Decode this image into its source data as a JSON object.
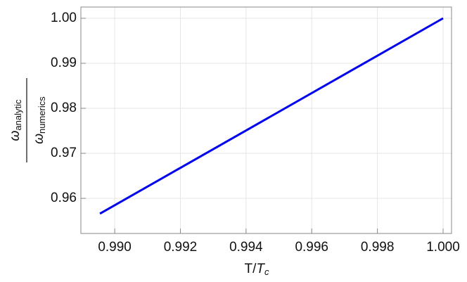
{
  "chart_data": {
    "type": "line",
    "x_label": {
      "main": "T/",
      "italic": "T",
      "sub": "c"
    },
    "y_label": {
      "symbol": "ω",
      "top_sub": "analytic",
      "bottom_sub": "numerics"
    },
    "x": [
      0.98955,
      1.0
    ],
    "series": [
      {
        "color": "#0000ee",
        "values": [
          0.9566,
          1.0
        ]
      }
    ],
    "xlim": [
      0.98897,
      1.000257
    ],
    "ylim": [
      0.9522,
      1.0025
    ],
    "xticks": [
      {
        "value": 0.99,
        "label": "0.990"
      },
      {
        "value": 0.992,
        "label": "0.992"
      },
      {
        "value": 0.994,
        "label": "0.994"
      },
      {
        "value": 0.996,
        "label": "0.996"
      },
      {
        "value": 0.998,
        "label": "0.998"
      },
      {
        "value": 1.0,
        "label": "1.000"
      }
    ],
    "yticks": [
      {
        "value": 0.96,
        "label": "0.96"
      },
      {
        "value": 0.97,
        "label": "0.97"
      },
      {
        "value": 0.98,
        "label": "0.98"
      },
      {
        "value": 0.99,
        "label": "0.99"
      },
      {
        "value": 1.0,
        "label": "1.00"
      }
    ],
    "grid": true
  }
}
